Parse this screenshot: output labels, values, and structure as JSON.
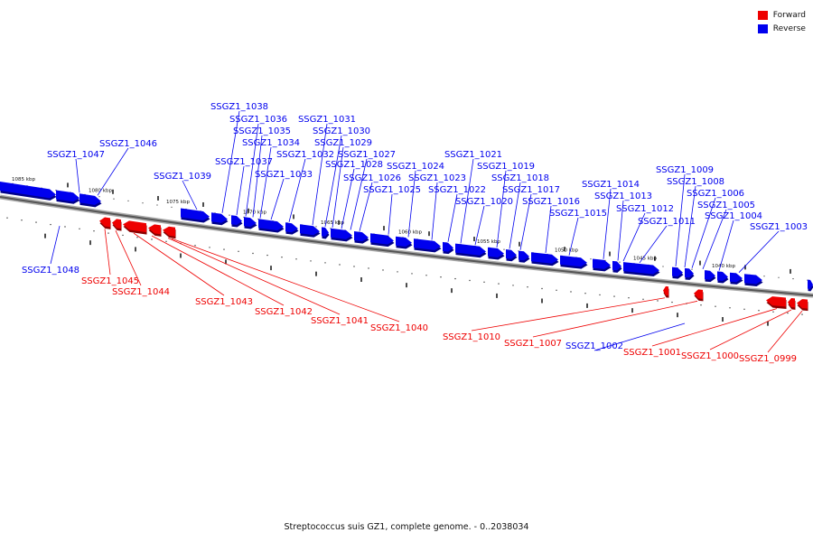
{
  "legend": [
    {
      "label": "Forward",
      "color": "#ee0000"
    },
    {
      "label": "Reverse",
      "color": "#0000ee"
    }
  ],
  "caption": "Streptococcus suis GZ1, complete genome. - 0..2038034",
  "axis_ticks": [
    "1085 kbp",
    "1080 kbp",
    "1075 kbp",
    "1070 kbp",
    "1065 kbp",
    "1060 kbp",
    "1055 kbp",
    "1050 kbp",
    "1045 kbp",
    "1040 kbp"
  ],
  "genes_reverse": [
    "SSGZ1_1048",
    "SSGZ1_1047",
    "SSGZ1_1046",
    "SSGZ1_1039",
    "SSGZ1_1038",
    "SSGZ1_1037",
    "SSGZ1_1036",
    "SSGZ1_1035",
    "SSGZ1_1034",
    "SSGZ1_1033",
    "SSGZ1_1032",
    "SSGZ1_1031",
    "SSGZ1_1030",
    "SSGZ1_1029",
    "SSGZ1_1028",
    "SSGZ1_1027",
    "SSGZ1_1026",
    "SSGZ1_1025",
    "SSGZ1_1024",
    "SSGZ1_1023",
    "SSGZ1_1022",
    "SSGZ1_1021",
    "SSGZ1_1020",
    "SSGZ1_1019",
    "SSGZ1_1018",
    "SSGZ1_1017",
    "SSGZ1_1016",
    "SSGZ1_1015",
    "SSGZ1_1014",
    "SSGZ1_1013",
    "SSGZ1_1012",
    "SSGZ1_1011",
    "SSGZ1_1009",
    "SSGZ1_1008",
    "SSGZ1_1006",
    "SSGZ1_1005",
    "SSGZ1_1004",
    "SSGZ1_1003",
    "SSGZ1_1002"
  ],
  "genes_forward": [
    "SSGZ1_1045",
    "SSGZ1_1044",
    "SSGZ1_1043",
    "SSGZ1_1042",
    "SSGZ1_1041",
    "SSGZ1_1040",
    "SSGZ1_1010",
    "SSGZ1_1007",
    "SSGZ1_1001",
    "SSGZ1_1000",
    "SSGZ1_0999"
  ]
}
